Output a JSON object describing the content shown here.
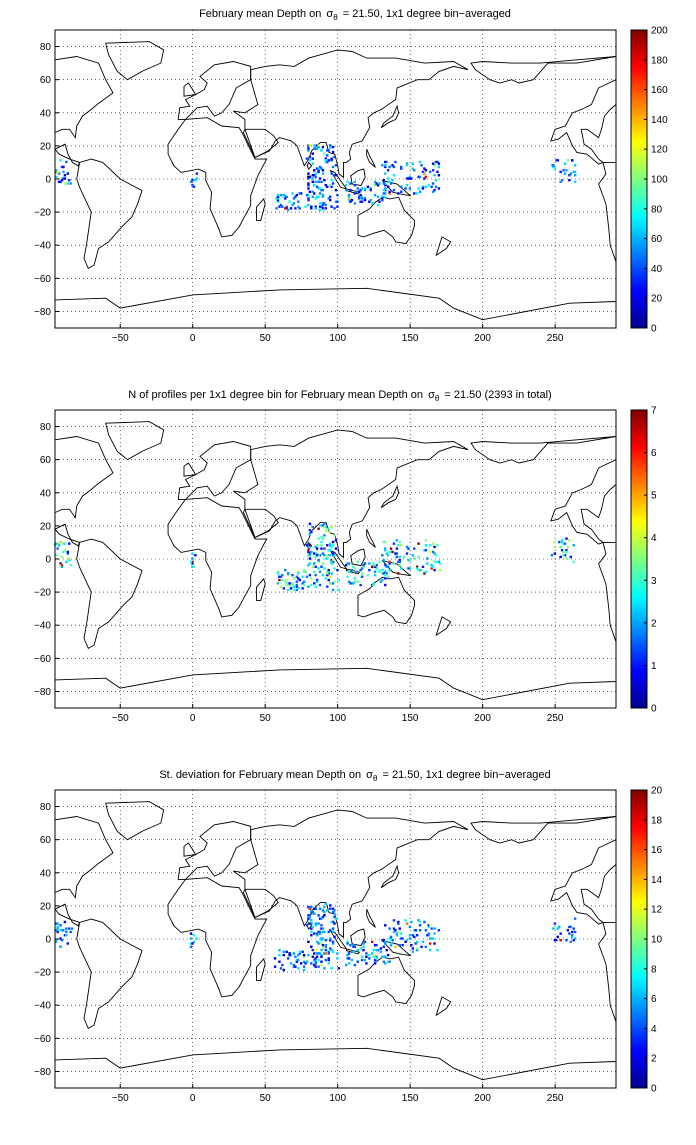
{
  "panels": [
    {
      "title_prefix": "February mean Depth on",
      "sigma_symbol": "σ",
      "theta_symbol": "θ",
      "title_suffix": "= 21.50, 1x1 degree bin−averaged",
      "colorbar": {
        "min": 0,
        "max": 200,
        "ticks": [
          "0",
          "20",
          "40",
          "60",
          "80",
          "100",
          "120",
          "140",
          "160",
          "180",
          "200"
        ]
      },
      "typical_value": 40
    },
    {
      "title_prefix": "N of profiles per 1x1 degree bin for February mean Depth on",
      "sigma_symbol": "σ",
      "theta_symbol": "θ",
      "title_suffix": "= 21.50 (2393 in total)",
      "colorbar": {
        "min": 0,
        "max": 7,
        "ticks": [
          "0",
          "1",
          "2",
          "3",
          "4",
          "5",
          "6",
          "7"
        ]
      },
      "typical_value": 2
    },
    {
      "title_prefix": "St. deviation for February mean Depth on",
      "sigma_symbol": "σ",
      "theta_symbol": "θ",
      "title_suffix": "= 21.50, 1x1 degree bin−averaged",
      "colorbar": {
        "min": 0,
        "max": 20,
        "ticks": [
          "0",
          "2",
          "4",
          "6",
          "8",
          "10",
          "12",
          "14",
          "16",
          "18",
          "20"
        ]
      },
      "typical_value": 4
    }
  ],
  "map_axes": {
    "x_ticks": [
      "−50",
      "0",
      "50",
      "100",
      "150",
      "200",
      "250"
    ],
    "y_ticks": [
      "80",
      "60",
      "40",
      "20",
      "0",
      "−20",
      "−40",
      "−60",
      "−80"
    ],
    "lon_range": [
      -95,
      292
    ],
    "lat_range": [
      -90,
      90
    ],
    "grid": "dotted"
  },
  "colormap": "jet"
}
